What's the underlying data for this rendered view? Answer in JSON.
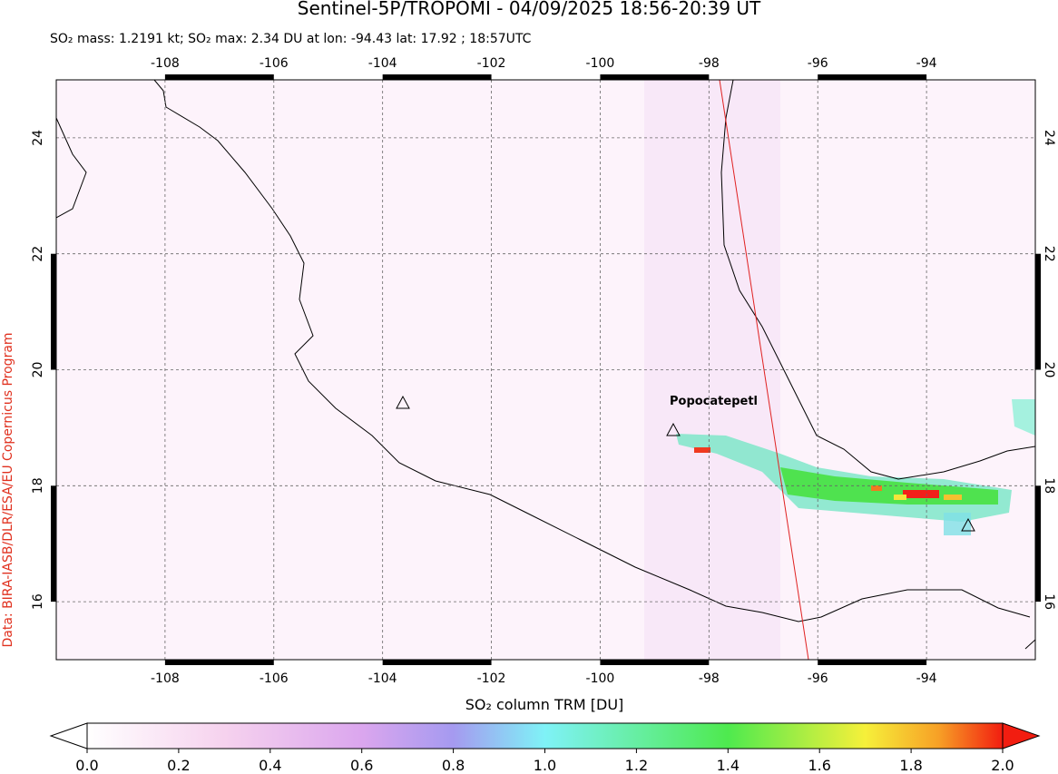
{
  "header": {
    "title": "Sentinel-5P/TROPOMI - 04/09/2025 18:56-20:39 UT",
    "subtitle": "SO₂ mass: 1.2191 kt; SO₂ max: 2.34 DU at lon: -94.43 lat: 17.92 ; 18:57UTC"
  },
  "map": {
    "lon_lim": [
      -110,
      -92
    ],
    "lat_lim": [
      15,
      25
    ],
    "lon_ticks": [
      -108,
      -106,
      -104,
      -102,
      -100,
      -98,
      -96,
      -94
    ],
    "lat_ticks": [
      16,
      18,
      20,
      22,
      24
    ],
    "volcano_label": "Popocatepetl",
    "credit": "Data: BIRA-IASB/DLR/ESA/EU Copernicus Program"
  },
  "colorbar": {
    "label": "SO₂ column TRM [DU]",
    "lim": [
      0,
      2
    ],
    "ticks": [
      {
        "value": 0,
        "label": "0.0"
      },
      {
        "value": 0.2,
        "label": "0.2"
      },
      {
        "value": 0.4,
        "label": "0.4"
      },
      {
        "value": 0.6,
        "label": "0.6"
      },
      {
        "value": 0.8,
        "label": "0.8"
      },
      {
        "value": 1,
        "label": "1.0"
      },
      {
        "value": 1.2,
        "label": "1.2"
      },
      {
        "value": 1.4,
        "label": "1.4"
      },
      {
        "value": 1.6,
        "label": "1.6"
      },
      {
        "value": 1.8,
        "label": "1.8"
      },
      {
        "value": 2,
        "label": "2.0"
      }
    ]
  }
}
